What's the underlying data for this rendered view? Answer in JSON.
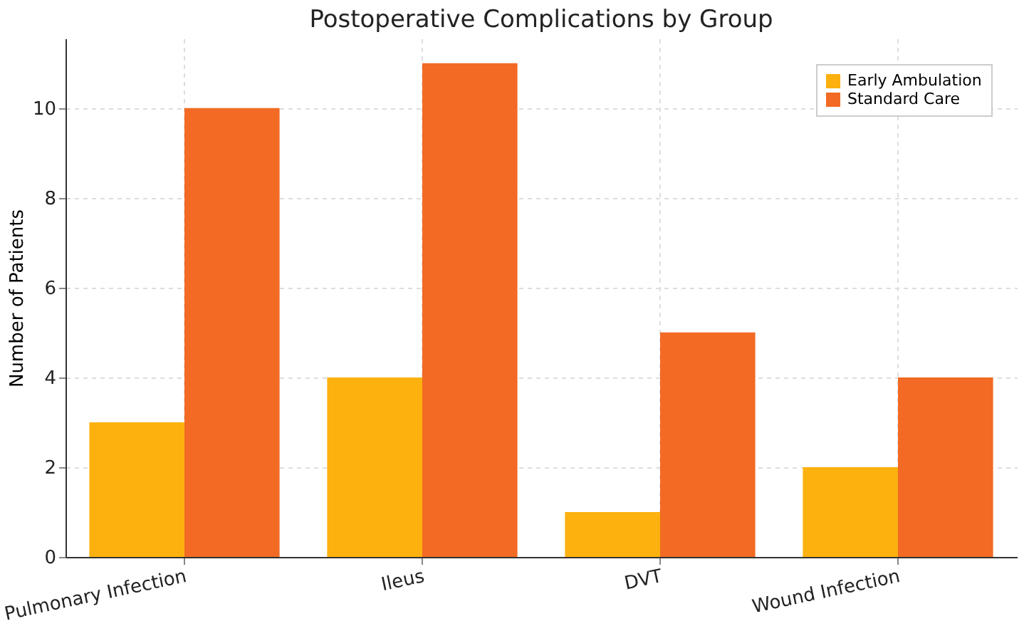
{
  "chart_data": {
    "type": "bar",
    "title": "Postoperative Complications by Group",
    "ylabel": "Number of Patients",
    "categories": [
      "Pulmonary Infection",
      "Ileus",
      "DVT",
      "Wound Infection"
    ],
    "series": [
      {
        "name": "Early Ambulation",
        "color": "#fcb10f",
        "values": [
          3,
          4,
          1,
          2
        ]
      },
      {
        "name": "Standard Care",
        "color": "#f26a24",
        "values": [
          10,
          11,
          5,
          4
        ]
      }
    ],
    "ylim": [
      0,
      11.55
    ],
    "yticks": [
      0,
      2,
      4,
      6,
      8,
      10
    ],
    "grid": true,
    "legend": "top right"
  }
}
